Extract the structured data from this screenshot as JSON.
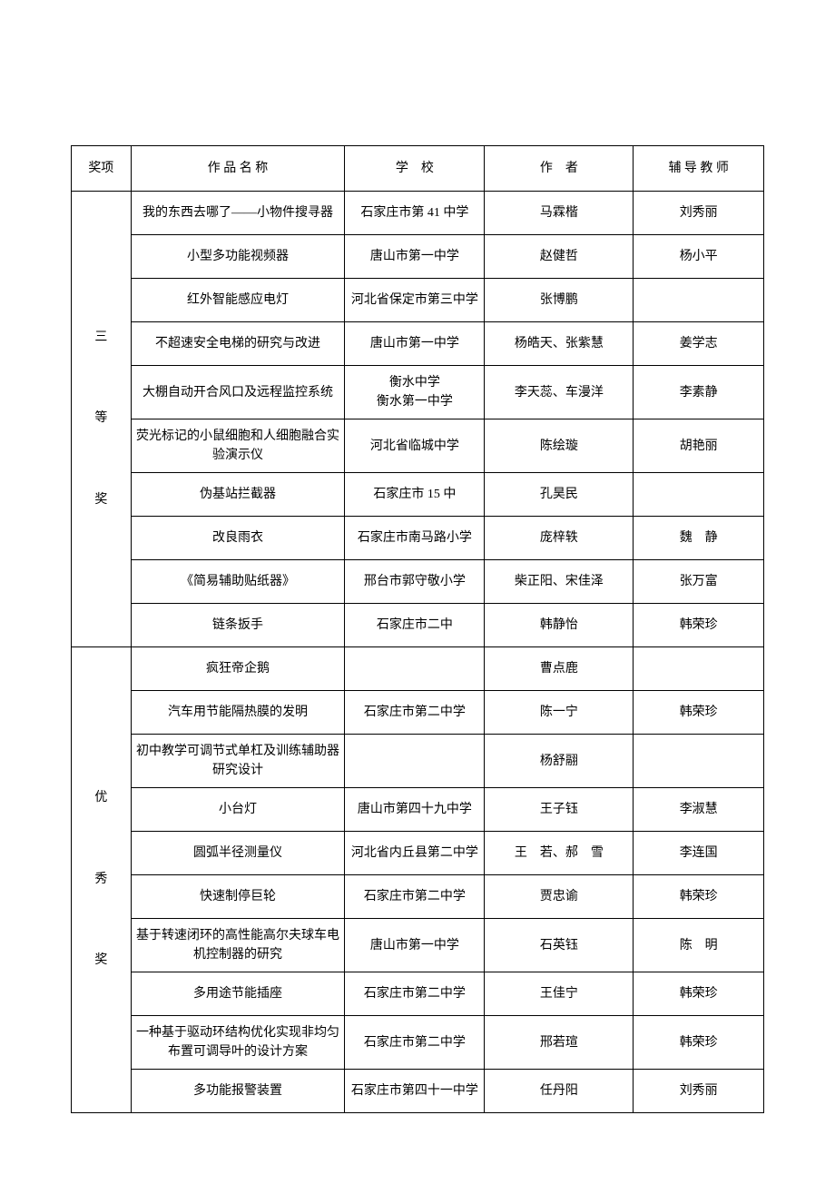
{
  "headers": {
    "award": "奖项",
    "name": "作 品 名 称",
    "school": "学　校",
    "author": "作　者",
    "teacher": "辅 导 教 师"
  },
  "groups": [
    {
      "award_label": "三\n\n等\n\n奖",
      "rows": [
        {
          "name": "我的东西去哪了——小物件搜寻器",
          "school": "石家庄市第 41 中学",
          "author": "马霖楷",
          "teacher": "刘秀丽"
        },
        {
          "name": "小型多功能视频器",
          "school": "唐山市第一中学",
          "author": "赵健哲",
          "teacher": "杨小平"
        },
        {
          "name": "红外智能感应电灯",
          "school": "河北省保定市第三中学",
          "author": "张博鹏",
          "teacher": ""
        },
        {
          "name": "不超速安全电梯的研究与改进",
          "school": "唐山市第一中学",
          "author": "杨皓天、张紫慧",
          "teacher": "姜学志"
        },
        {
          "name": "大棚自动开合风口及远程监控系统",
          "school": "衡水中学\n衡水第一中学",
          "author": "李天蕊、车漫洋",
          "teacher": "李素静"
        },
        {
          "name": "荧光标记的小鼠细胞和人细胞融合实验演示仪",
          "school": "河北省临城中学",
          "author": "陈绘璇",
          "teacher": "胡艳丽"
        },
        {
          "name": "伪基站拦截器",
          "school": "石家庄市 15 中",
          "author": "孔昊民",
          "teacher": ""
        },
        {
          "name": "改良雨衣",
          "school": "石家庄市南马路小学",
          "author": "庞梓轶",
          "teacher": "魏　静"
        },
        {
          "name": "《简易辅助贴纸器》",
          "school": "邢台市郭守敬小学",
          "author": "柴正阳、宋佳泽",
          "teacher": "张万富"
        },
        {
          "name": "链条扳手",
          "school": "石家庄市二中",
          "author": "韩静怡",
          "teacher": "韩荣珍"
        }
      ]
    },
    {
      "award_label": "优\n\n秀\n\n奖",
      "rows": [
        {
          "name": "疯狂帝企鹅",
          "school": "",
          "author": "曹点鹿",
          "teacher": ""
        },
        {
          "name": "汽车用节能隔热膜的发明",
          "school": "石家庄市第二中学",
          "author": "陈一宁",
          "teacher": "韩荣珍"
        },
        {
          "name": "初中教学可调节式单杠及训练辅助器研究设计",
          "school": "",
          "author": "杨舒翮",
          "teacher": ""
        },
        {
          "name": "小台灯",
          "school": "唐山市第四十九中学",
          "author": "王子钰",
          "teacher": "李淑慧"
        },
        {
          "name": "圆弧半径测量仪",
          "school": "河北省内丘县第二中学",
          "author": "王　若、郝　雪",
          "teacher": "李连国"
        },
        {
          "name": "快速制停巨轮",
          "school": "石家庄市第二中学",
          "author": "贾忠谕",
          "teacher": "韩荣珍"
        },
        {
          "name": "基于转速闭环的高性能高尔夫球车电机控制器的研究",
          "school": "唐山市第一中学",
          "author": "石英钰",
          "teacher": "陈　明"
        },
        {
          "name": "多用途节能插座",
          "school": "石家庄市第二中学",
          "author": "王佳宁",
          "teacher": "韩荣珍"
        },
        {
          "name": "一种基于驱动环结构优化实现非均匀布置可调导叶的设计方案",
          "school": "石家庄市第二中学",
          "author": "邢若瑄",
          "teacher": "韩荣珍"
        },
        {
          "name": "多功能报警装置",
          "school": "石家庄市第四十一中学",
          "author": "任丹阳",
          "teacher": "刘秀丽"
        }
      ]
    }
  ]
}
